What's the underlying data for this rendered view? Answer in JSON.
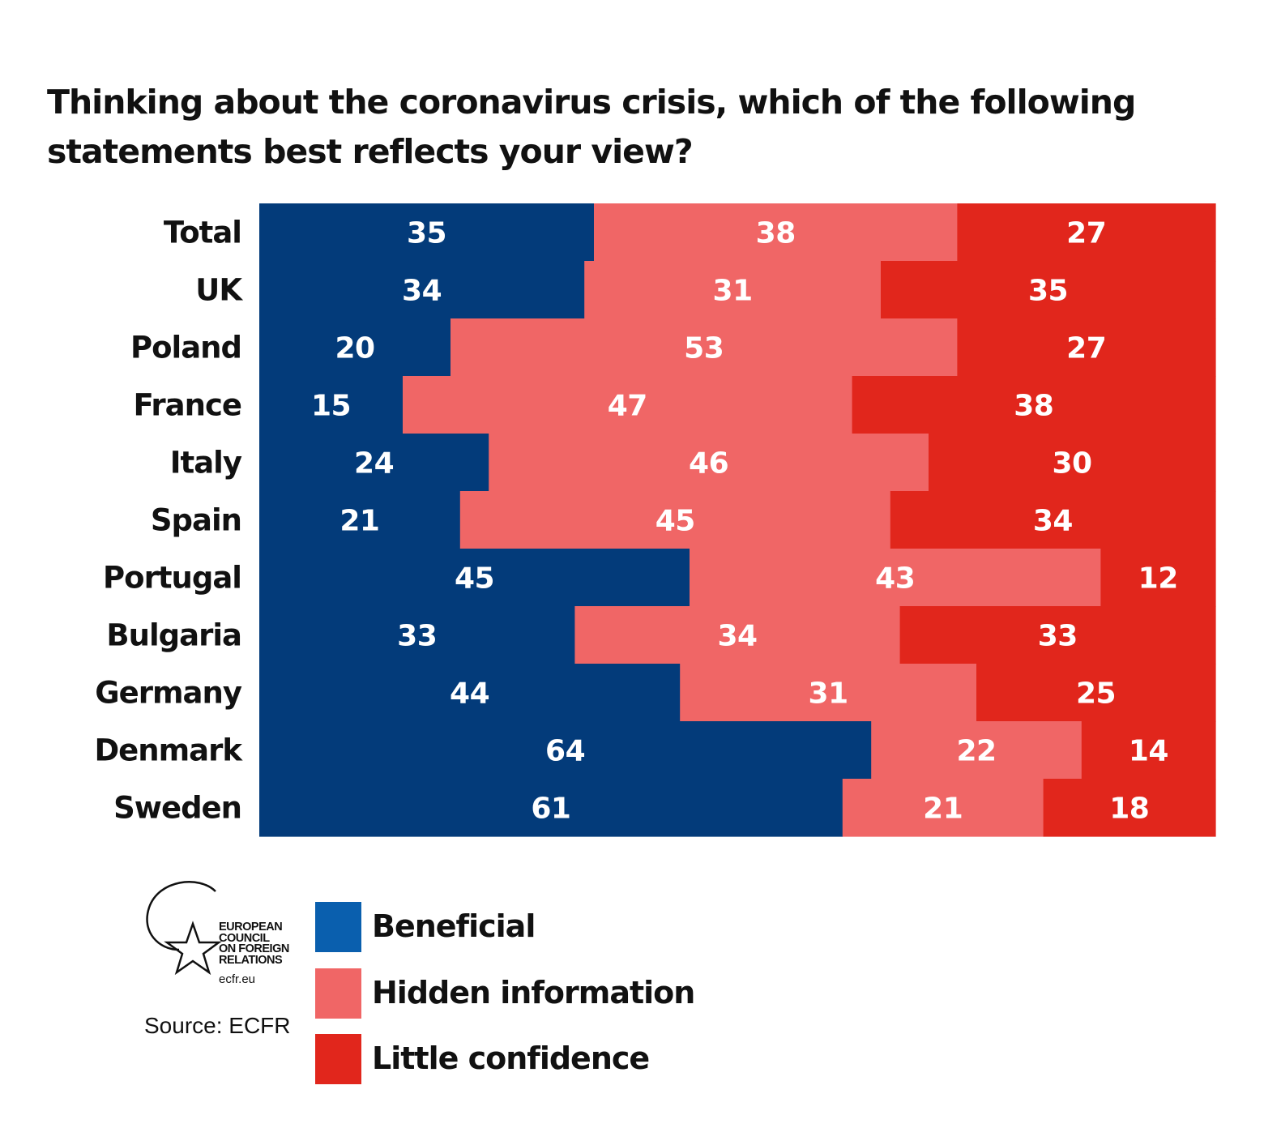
{
  "title_lines": [
    "Thinking about the coronavirus crisis, which of the following",
    "statements best reflects your view?"
  ],
  "colors": {
    "beneficial": "#033b7a",
    "hidden_information": "#f06666",
    "little_confidence": "#e1261c",
    "legend_beneficial": "#0a5fae"
  },
  "chart_data": {
    "type": "bar",
    "orientation": "horizontal",
    "stacked": true,
    "title": "Thinking about the coronavirus crisis, which of the following statements best reflects your view?",
    "xlabel": "",
    "ylabel": "",
    "xlim": [
      0,
      100
    ],
    "grid": false,
    "legend_position": "bottom",
    "categories": [
      "Total",
      "UK",
      "Poland",
      "France",
      "Italy",
      "Spain",
      "Portugal",
      "Bulgaria",
      "Germany",
      "Denmark",
      "Sweden"
    ],
    "series": [
      {
        "name": "Beneficial",
        "values": [
          35,
          34,
          20,
          15,
          24,
          21,
          45,
          33,
          44,
          64,
          61
        ]
      },
      {
        "name": "Hidden information",
        "values": [
          38,
          31,
          53,
          47,
          46,
          45,
          43,
          34,
          31,
          22,
          21
        ]
      },
      {
        "name": "Little confidence",
        "values": [
          27,
          35,
          27,
          38,
          30,
          34,
          12,
          33,
          25,
          14,
          18
        ]
      }
    ]
  },
  "legend": [
    {
      "label": "Beneficial",
      "color": "#0a5fae"
    },
    {
      "label": "Hidden information",
      "color": "#f06666"
    },
    {
      "label": "Little confidence",
      "color": "#e1261c"
    }
  ],
  "logo": {
    "name_lines": [
      "EUROPEAN",
      "COUNCIL",
      "ON FOREIGN",
      "RELATIONS"
    ],
    "url": "ecfr.eu",
    "icon": "star-circle-icon"
  },
  "source": "Source: ECFR"
}
